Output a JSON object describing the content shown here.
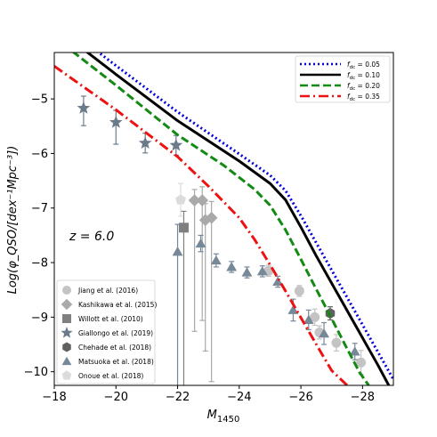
{
  "chart_data": {
    "type": "line",
    "xlabel_main": "M",
    "xlabel_sub": "1450",
    "ylabel": "Log(φ_QSO/[dex⁻¹Mpc⁻³])",
    "xlim": [
      -18,
      -29
    ],
    "ylim": [
      -10.25,
      -4.15
    ],
    "x_reversed": true,
    "x_ticks": [
      -18,
      -20,
      -22,
      -24,
      -26,
      -28
    ],
    "y_ticks": [
      -5,
      -6,
      -7,
      -8,
      -9,
      -10
    ],
    "annotation": "z = 6.0",
    "legend_title_symbol": "f",
    "legend_title_sub": "dc",
    "series": [
      {
        "name": "0.05",
        "color": "#0000dd",
        "style": "dotted",
        "x": [
          -18.0,
          -20.0,
          -22.0,
          -24.0,
          -25.0,
          -25.5,
          -26.0,
          -26.5,
          -27.0,
          -27.5,
          -28.0,
          -28.5,
          -29.0
        ],
        "y": [
          -3.53,
          -4.39,
          -5.24,
          -6.01,
          -6.4,
          -6.68,
          -7.14,
          -7.64,
          -8.14,
          -8.64,
          -9.14,
          -9.64,
          -10.14
        ]
      },
      {
        "name": "0.10",
        "color": "#000000",
        "style": "solid",
        "x": [
          -18.0,
          -20.0,
          -22.0,
          -24.0,
          -25.0,
          -25.5,
          -26.0,
          -26.5,
          -27.0,
          -27.5,
          -28.0,
          -28.5,
          -28.85
        ],
        "y": [
          -3.68,
          -4.55,
          -5.4,
          -6.14,
          -6.55,
          -6.85,
          -7.35,
          -7.88,
          -8.38,
          -8.88,
          -9.38,
          -9.88,
          -10.25
        ]
      },
      {
        "name": "0.20",
        "color": "#138a13",
        "style": "dashed",
        "x": [
          -18.0,
          -20.0,
          -22.0,
          -23.5,
          -24.5,
          -25.0,
          -25.5,
          -26.0,
          -26.5,
          -27.0,
          -27.5,
          -27.9,
          -28.2
        ],
        "y": [
          -3.87,
          -4.75,
          -5.66,
          -6.22,
          -6.66,
          -6.95,
          -7.4,
          -7.94,
          -8.49,
          -9.03,
          -9.58,
          -10.01,
          -10.25
        ]
      },
      {
        "name": "0.35",
        "color": "#ee1111",
        "style": "dashdot",
        "x": [
          -18.0,
          -20.0,
          -22.0,
          -23.0,
          -24.0,
          -24.5,
          -25.0,
          -25.5,
          -26.0,
          -26.5,
          -27.0,
          -27.5
        ],
        "y": [
          -4.4,
          -5.2,
          -6.06,
          -6.6,
          -7.18,
          -7.58,
          -8.04,
          -8.52,
          -9.01,
          -9.5,
          -9.98,
          -10.25
        ]
      }
    ],
    "datasets": [
      {
        "name": "Jiang et al. (2016)",
        "marker": "circle",
        "color": "#c4c4c4",
        "points": [
          {
            "x": -24.95,
            "y": -8.15,
            "err": [
              0.1,
              0.1
            ]
          },
          {
            "x": -25.95,
            "y": -8.52,
            "err": [
              0.1,
              0.1
            ]
          },
          {
            "x": -26.45,
            "y": -9.0,
            "err": [
              0.15,
              0.15
            ]
          },
          {
            "x": -26.6,
            "y": -9.28,
            "err": [
              0.12,
              0.12
            ]
          },
          {
            "x": -27.15,
            "y": -9.47,
            "err": [
              0.15,
              0.15
            ]
          },
          {
            "x": -27.95,
            "y": -9.83,
            "err": [
              0.22,
              0.22
            ]
          }
        ]
      },
      {
        "name": "Kashikawa et al. (2015)",
        "marker": "diamond",
        "color": "#a9a9a9",
        "points": [
          {
            "x": -22.55,
            "y": -6.86,
            "err": [
              0.2,
              2.4
            ]
          },
          {
            "x": -22.8,
            "y": -6.86,
            "err": [
              0.25,
              2.2
            ]
          },
          {
            "x": -22.9,
            "y": -7.22,
            "err": [
              0.3,
              2.4
            ]
          },
          {
            "x": -23.1,
            "y": -7.18,
            "err": [
              0.3,
              3.0
            ]
          }
        ]
      },
      {
        "name": "Willott et al. (2010)",
        "marker": "square",
        "color": "#808080",
        "points": [
          {
            "x": -22.2,
            "y": -7.36,
            "err": [
              0.3,
              2.9
            ]
          }
        ]
      },
      {
        "name": "Giallongo et al. (2019)",
        "marker": "star",
        "color": "#6c7b8b",
        "points": [
          {
            "x": -18.95,
            "y": -5.17,
            "err": [
              0.22,
              0.32
            ]
          },
          {
            "x": -20.0,
            "y": -5.43,
            "err": [
              0.22,
              0.4
            ]
          },
          {
            "x": -20.95,
            "y": -5.81,
            "err": [
              0.18,
              0.18
            ]
          },
          {
            "x": -21.95,
            "y": -5.85,
            "err": [
              0.18,
              0.18
            ]
          }
        ]
      },
      {
        "name": "Chehade et al. (2018)",
        "marker": "hexagon",
        "color": "#606060",
        "points": [
          {
            "x": -26.95,
            "y": -8.93,
            "err": [
              0.12,
              0.12
            ]
          }
        ]
      },
      {
        "name": "Matsuoka et al. (2018)",
        "marker": "triangle",
        "color": "#778899",
        "points": [
          {
            "x": -22.0,
            "y": -7.8,
            "err": [
              0.5,
              2.45
            ]
          },
          {
            "x": -22.75,
            "y": -7.65,
            "err": [
              0.15,
              0.15
            ]
          },
          {
            "x": -23.25,
            "y": -7.96,
            "err": [
              0.12,
              0.12
            ]
          },
          {
            "x": -23.75,
            "y": -8.08,
            "err": [
              0.1,
              0.1
            ]
          },
          {
            "x": -24.25,
            "y": -8.18,
            "err": [
              0.1,
              0.1
            ]
          },
          {
            "x": -24.75,
            "y": -8.16,
            "err": [
              0.1,
              0.1
            ]
          },
          {
            "x": -25.25,
            "y": -8.35,
            "err": [
              0.1,
              0.1
            ]
          },
          {
            "x": -25.75,
            "y": -8.87,
            "err": [
              0.2,
              0.2
            ]
          },
          {
            "x": -26.25,
            "y": -9.05,
            "err": [
              0.18,
              0.18
            ]
          },
          {
            "x": -26.75,
            "y": -9.3,
            "err": [
              0.2,
              0.2
            ]
          },
          {
            "x": -27.75,
            "y": -9.63,
            "err": [
              0.15,
              0.15
            ]
          }
        ]
      },
      {
        "name": "Onoue et al. (2018)",
        "marker": "pentagon",
        "color": "#dcdcdc",
        "points": [
          {
            "x": -22.1,
            "y": -6.85,
            "err": [
              0.3,
              0.3
            ]
          }
        ]
      }
    ]
  }
}
